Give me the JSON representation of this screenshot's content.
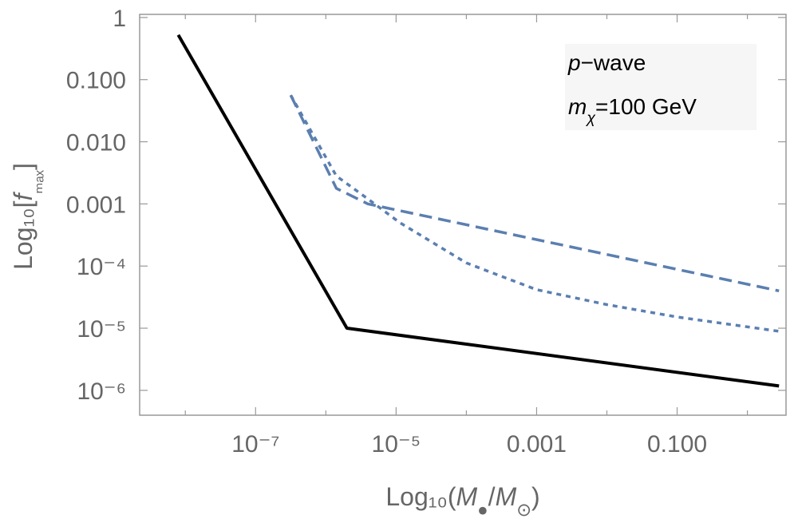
{
  "chart_data": {
    "type": "line",
    "xscale": "log",
    "yscale": "log",
    "xlim_log10": [
      -8.65,
      0.55
    ],
    "ylim_log10": [
      -6.4,
      0.05
    ],
    "xlabel": "Log₁₀(M●/M⊙)",
    "ylabel": "Log₁₀[fₘₐₓ]",
    "x_ticks": [
      {
        "log10": -7,
        "label": "10⁻⁷"
      },
      {
        "log10": -5,
        "label": "10⁻⁵"
      },
      {
        "log10": -3,
        "label": "0.001"
      },
      {
        "log10": -1,
        "label": "0.100"
      }
    ],
    "y_ticks": [
      {
        "log10": 0,
        "label": "1"
      },
      {
        "log10": -1,
        "label": "0.100"
      },
      {
        "log10": -2,
        "label": "0.010"
      },
      {
        "log10": -3,
        "label": "0.001"
      },
      {
        "log10": -4,
        "label": "10⁻⁴"
      },
      {
        "log10": -5,
        "label": "10⁻⁵"
      },
      {
        "log10": -6,
        "label": "10⁻⁶"
      }
    ],
    "annotation": {
      "line1": "p−wave",
      "line2": "mχ=100 GeV"
    },
    "series": [
      {
        "name": "solid",
        "style": "solid",
        "color": "#000000",
        "points_log10": [
          [
            -8.1,
            -0.28
          ],
          [
            -5.7,
            -5.0
          ],
          [
            0.45,
            -5.93
          ]
        ]
      },
      {
        "name": "dashed",
        "style": "dashed",
        "color": "#5b7fb0",
        "points_log10": [
          [
            -6.5,
            -1.25
          ],
          [
            -5.85,
            -2.75
          ],
          [
            -5.4,
            -3.0
          ],
          [
            0.45,
            -4.4
          ]
        ]
      },
      {
        "name": "dotted",
        "style": "dotted",
        "color": "#5b7fb0",
        "points_log10": [
          [
            -6.5,
            -1.25
          ],
          [
            -5.85,
            -2.55
          ],
          [
            -5.4,
            -2.92
          ],
          [
            -4.95,
            -3.3
          ],
          [
            -4.0,
            -3.95
          ],
          [
            -3.0,
            -4.38
          ],
          [
            -2.0,
            -4.62
          ],
          [
            -1.0,
            -4.82
          ],
          [
            0.45,
            -5.05
          ]
        ]
      }
    ]
  }
}
